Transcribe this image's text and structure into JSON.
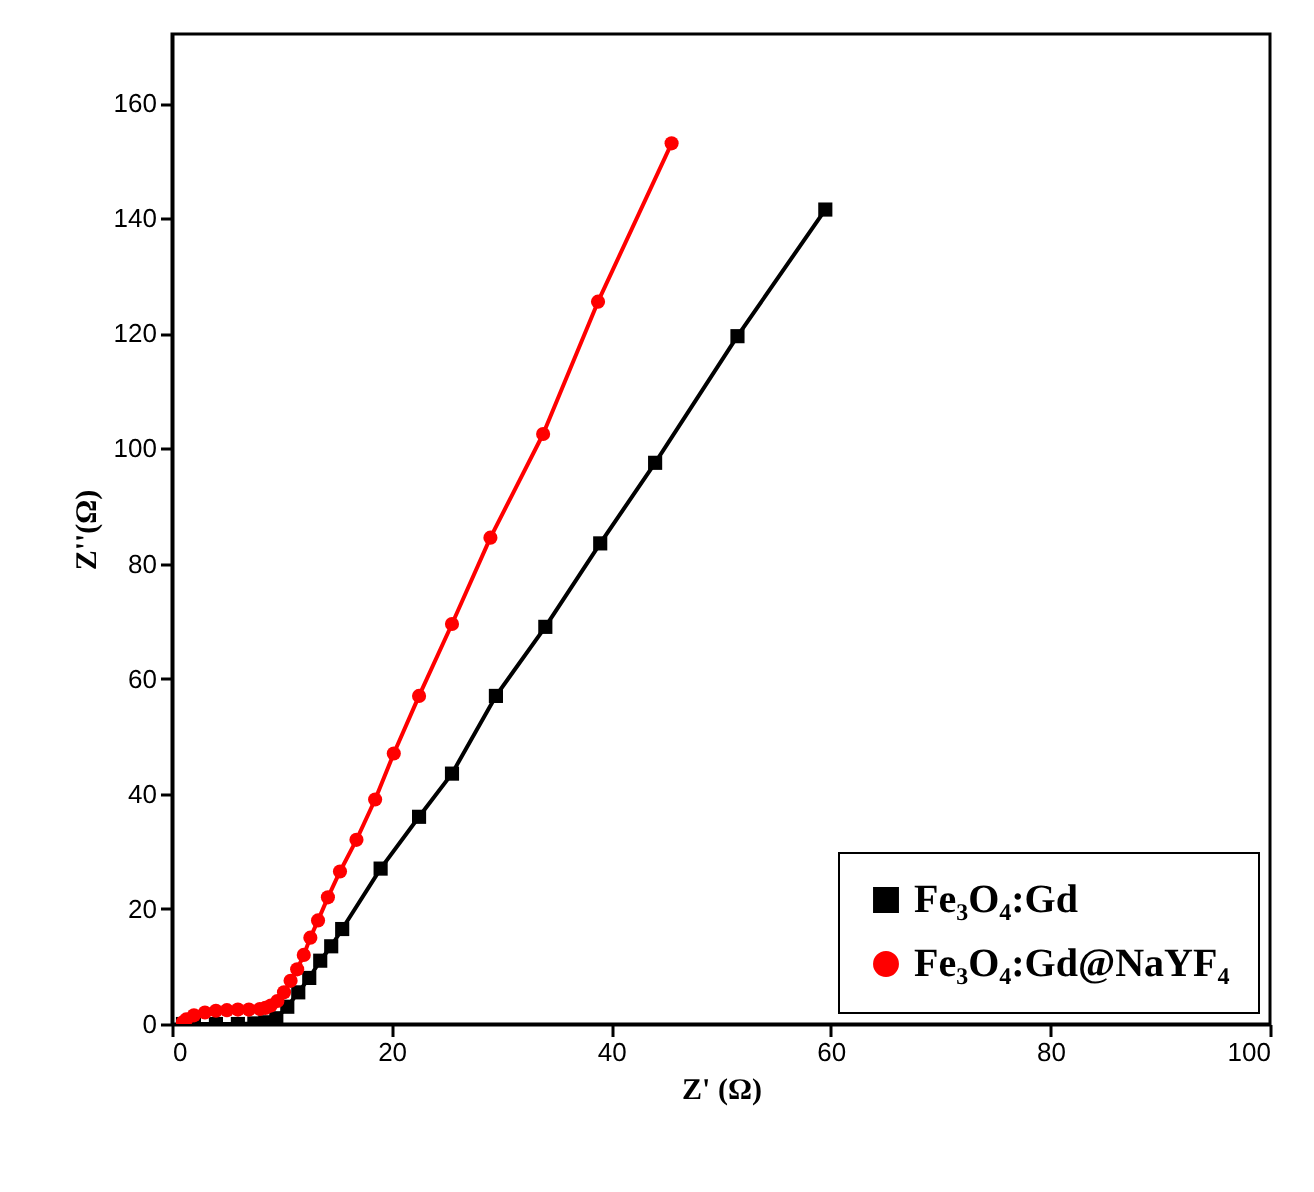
{
  "chart_data": {
    "type": "line",
    "xlabel": "Z' (Ω)",
    "ylabel": "Z''(Ω)",
    "xlim": [
      0,
      100
    ],
    "xticks": [
      0,
      20,
      40,
      60,
      80,
      100
    ],
    "ylim": [
      0,
      172
    ],
    "yticks": [
      0,
      20,
      40,
      60,
      80,
      100,
      120,
      140,
      160
    ],
    "grid": false,
    "legend": "bottom right",
    "line_style": "solid",
    "series": [
      {
        "name": "Fe₃O₄:Gd",
        "color": "#000000",
        "marker": "square",
        "x": [
          1,
          2,
          4,
          6,
          7.5,
          8.5,
          9.5,
          10.5,
          11.5,
          12.5,
          13.5,
          14.5,
          15.5,
          19,
          22.5,
          25.5,
          29.5,
          34,
          39,
          44,
          51.5,
          59.5
        ],
        "values": [
          0,
          0,
          0,
          0,
          0.1,
          0.3,
          1,
          3,
          5.5,
          8,
          11,
          13.5,
          16.5,
          27,
          36,
          43.5,
          57,
          69,
          83.5,
          97.5,
          119.5,
          141.5
        ]
      },
      {
        "name": "Fe₃O₄:Gd@NaYF₄",
        "color": "#ff0000",
        "marker": "circle",
        "x": [
          1,
          1.3,
          2,
          3,
          4,
          5,
          6,
          7,
          8,
          8.5,
          9,
          9.6,
          10.2,
          10.8,
          11.4,
          12,
          12.6,
          13.3,
          14.2,
          15.3,
          16.8,
          18.5,
          20.2,
          22.5,
          25.5,
          29,
          33.8,
          38.8,
          45.5
        ],
        "values": [
          0.3,
          0.8,
          1.5,
          2,
          2.3,
          2.4,
          2.5,
          2.5,
          2.6,
          2.8,
          3.2,
          4,
          5.5,
          7.5,
          9.5,
          12,
          15,
          18,
          22,
          26.5,
          32,
          39,
          47,
          57,
          69.5,
          84.5,
          102.5,
          125.5,
          153
        ]
      }
    ]
  }
}
